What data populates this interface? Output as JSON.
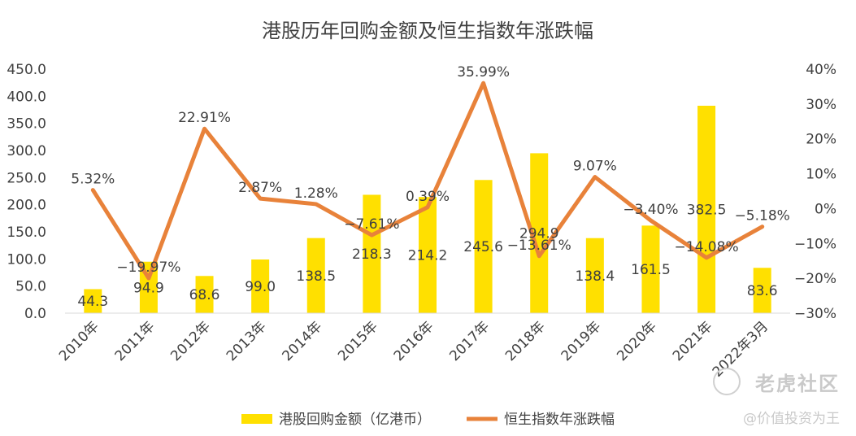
{
  "chart_data": {
    "type": "bar",
    "title": "港股历年回购金额及恒生指数年涨跌幅",
    "categories": [
      "2010年",
      "2011年",
      "2012年",
      "2013年",
      "2014年",
      "2015年",
      "2016年",
      "2017年",
      "2018年",
      "2019年",
      "2020年",
      "2021年",
      "2022年3月"
    ],
    "series": [
      {
        "name": "港股回购金额（亿港币）",
        "kind": "bar",
        "axis": "left",
        "color": "#FFE000",
        "values": [
          44.3,
          94.9,
          68.6,
          99.0,
          138.5,
          218.3,
          214.2,
          245.6,
          294.9,
          138.4,
          161.5,
          382.5,
          83.6
        ],
        "labels": [
          "44.3",
          "94.9",
          "68.6",
          "99.0",
          "138.5",
          "218.3",
          "214.2",
          "245.6",
          "294.9",
          "138.4",
          "161.5",
          "382.5",
          "83.6"
        ]
      },
      {
        "name": "恒生指数年涨跌幅",
        "kind": "line",
        "axis": "right",
        "color": "#E8823A",
        "values": [
          5.32,
          -19.97,
          22.91,
          2.87,
          1.28,
          -7.61,
          0.39,
          35.99,
          -13.61,
          9.07,
          -3.4,
          -14.08,
          -5.18
        ],
        "labels": [
          "5.32%",
          "−19.97%",
          "22.91%",
          "2.87%",
          "1.28%",
          "−7.61%",
          "0.39%",
          "35.99%",
          "−13.61%",
          "9.07%",
          "−3.40%",
          "−14.08%",
          "−5.18%"
        ]
      }
    ],
    "y_left": {
      "range": [
        0,
        450
      ],
      "ticks": [
        "0.0",
        "50.0",
        "100.0",
        "150.0",
        "200.0",
        "250.0",
        "300.0",
        "350.0",
        "400.0",
        "450.0"
      ]
    },
    "y_right": {
      "range": [
        -30,
        40
      ],
      "ticks": [
        "−30%",
        "−20%",
        "−10%",
        "0%",
        "10%",
        "20%",
        "30%",
        "40%"
      ]
    },
    "grid": false,
    "legend_position": "bottom"
  },
  "watermark": {
    "brand": "老虎社区",
    "user": "@价值投资为王"
  }
}
